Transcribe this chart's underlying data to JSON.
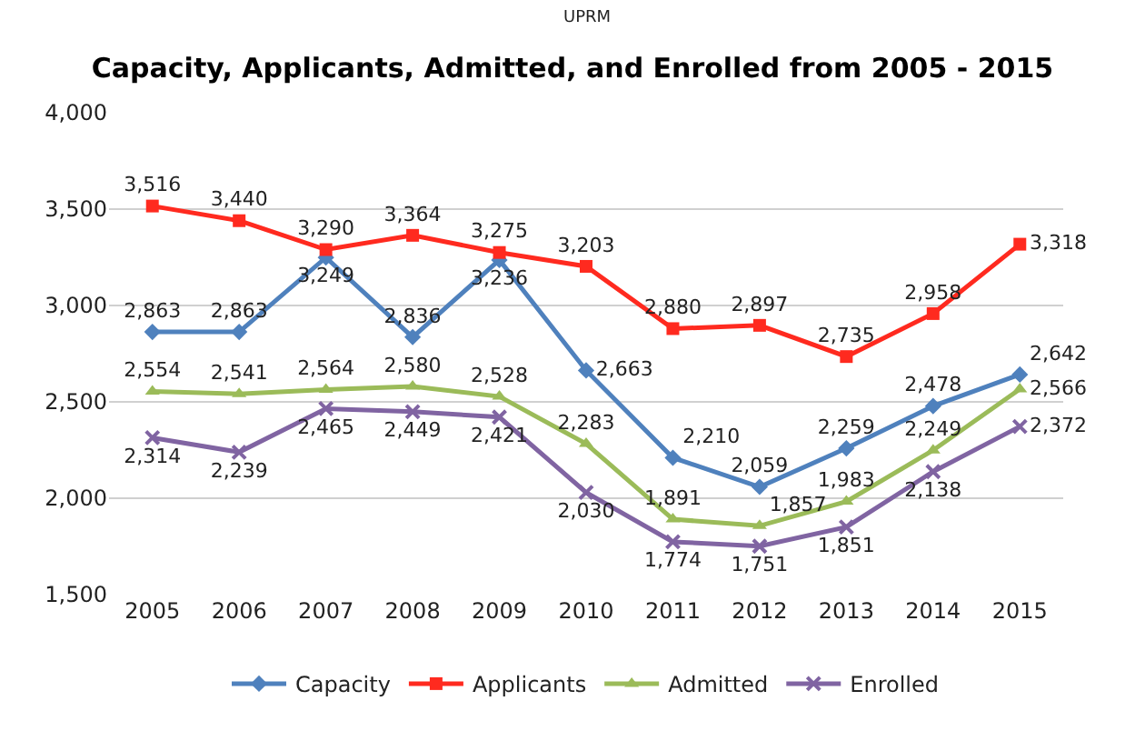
{
  "chart_data": {
    "type": "line",
    "subtitle": "UPRM",
    "title": "Capacity, Applicants, Admitted, and Enrolled from 2005 - 2015",
    "categories": [
      "2005",
      "2006",
      "2007",
      "2008",
      "2009",
      "2010",
      "2011",
      "2012",
      "2013",
      "2014",
      "2015"
    ],
    "series": [
      {
        "name": "Capacity",
        "color": "#4f81bd",
        "marker": "diamond",
        "values": [
          2863,
          2863,
          3249,
          2836,
          3236,
          2663,
          2210,
          2059,
          2259,
          2478,
          2642
        ],
        "value_labels": [
          "2,863",
          "2,863",
          "3,249",
          "2,836",
          "3,236",
          "2,663",
          "2,210",
          "2,059",
          "2,259",
          "2,478",
          "2,642"
        ]
      },
      {
        "name": "Applicants",
        "color": "#ff2a1f",
        "marker": "square",
        "values": [
          3516,
          3440,
          3290,
          3364,
          3275,
          3203,
          2880,
          2897,
          2735,
          2958,
          3318
        ],
        "value_labels": [
          "3,516",
          "3,440",
          "3,290",
          "3,364",
          "3,275",
          "3,203",
          "2,880",
          "2,897",
          "2,735",
          "2,958",
          "3,318"
        ]
      },
      {
        "name": "Admitted",
        "color": "#9bbb59",
        "marker": "triangle",
        "values": [
          2554,
          2541,
          2564,
          2580,
          2528,
          2283,
          1891,
          1857,
          1983,
          2249,
          2566
        ],
        "value_labels": [
          "2,554",
          "2,541",
          "2,564",
          "2,580",
          "2,528",
          "2,283",
          "1,891",
          "1,857",
          "1,983",
          "2,249",
          "2,566"
        ]
      },
      {
        "name": "Enrolled",
        "color": "#8064a2",
        "marker": "cross",
        "values": [
          2314,
          2239,
          2465,
          2449,
          2421,
          2030,
          1774,
          1751,
          1851,
          2138,
          2372
        ],
        "value_labels": [
          "2,314",
          "2,239",
          "2,465",
          "2,449",
          "2,421",
          "2,030",
          "1,774",
          "1,751",
          "1,851",
          "2,138",
          "2,372"
        ]
      }
    ],
    "ylim": [
      1500,
      4000
    ],
    "yticks": [
      {
        "value": 1500,
        "label": "1,500"
      },
      {
        "value": 2000,
        "label": "2,000"
      },
      {
        "value": 2500,
        "label": "2,500"
      },
      {
        "value": 3000,
        "label": "3,000"
      },
      {
        "value": 3500,
        "label": "3,500"
      },
      {
        "value": 4000,
        "label": "4,000"
      }
    ],
    "grid": "y",
    "legend": "bottom",
    "line_style": "solid"
  }
}
